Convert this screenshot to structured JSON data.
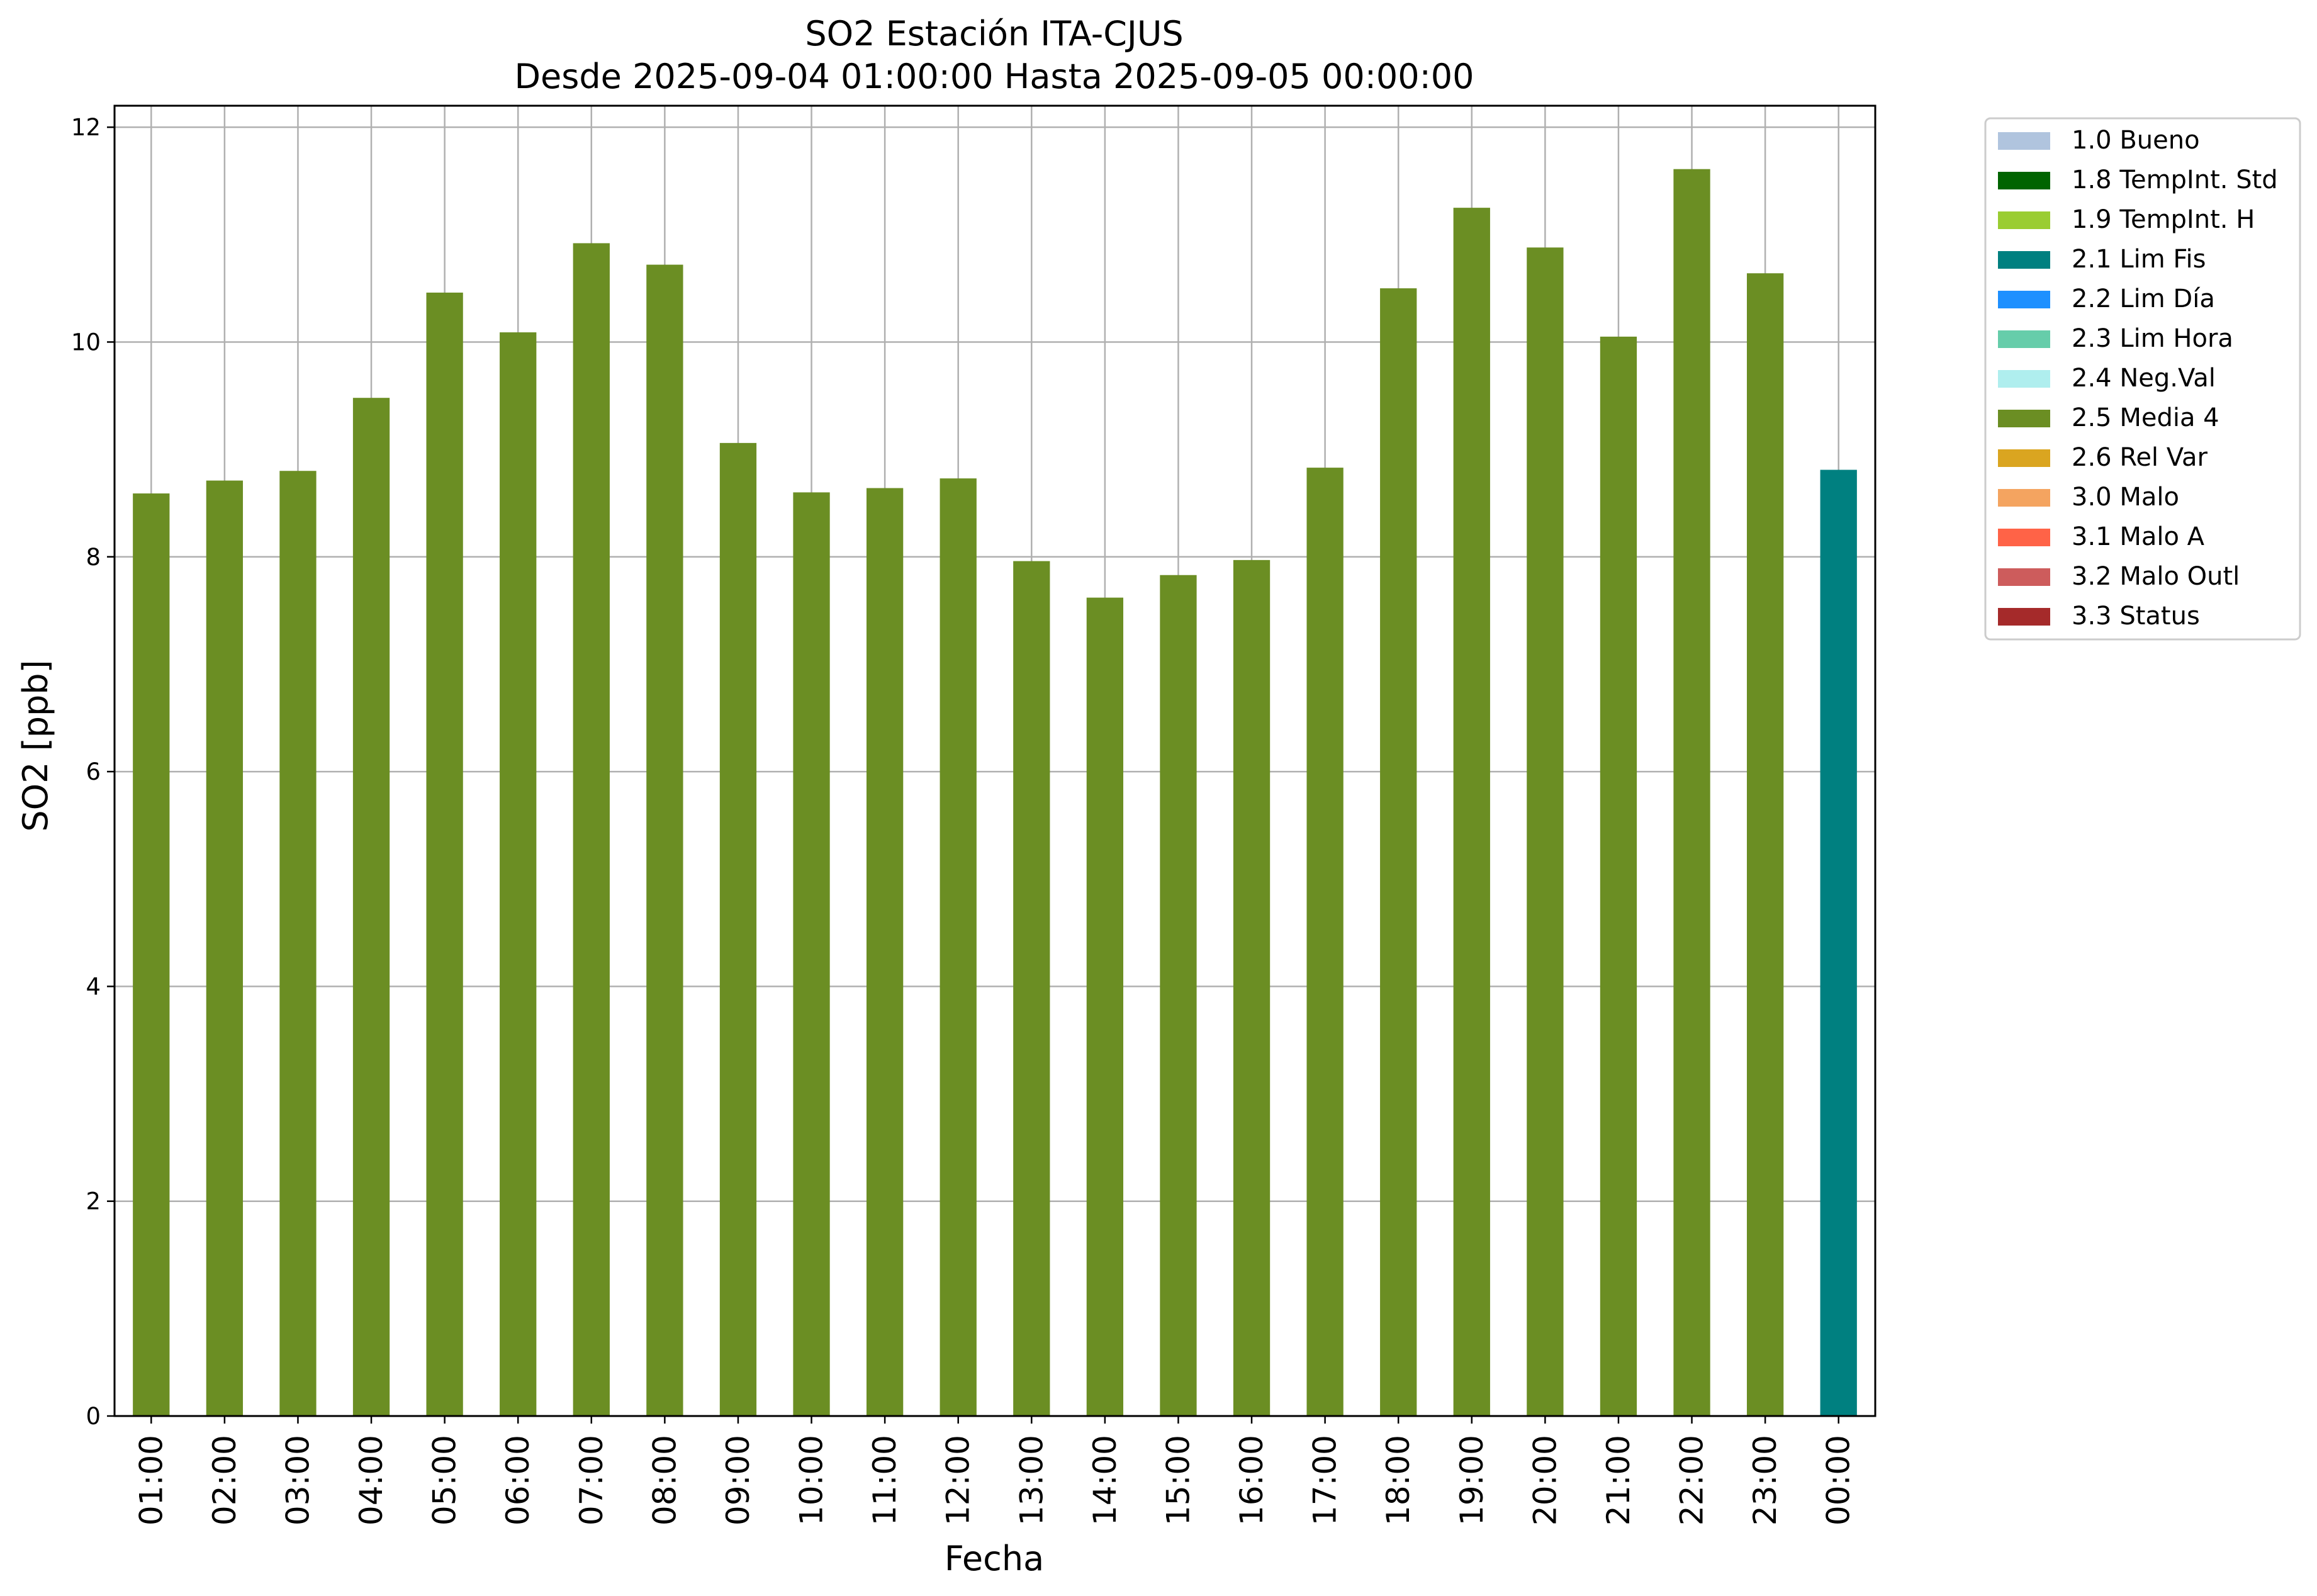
{
  "chart_data": {
    "type": "bar",
    "title": "SO2 Estación ITA-CJUS",
    "subtitle": "Desde 2025-09-04 01:00:00 Hasta 2025-09-05 00:00:00",
    "xlabel": "Fecha",
    "ylabel": "SO2 [ppb]",
    "ylim": [
      0,
      12.2
    ],
    "yticks": [
      "0",
      "2",
      "4",
      "6",
      "8",
      "10",
      "12"
    ],
    "grid": true,
    "legend_position": "outside top-right",
    "categories": [
      "01:00",
      "02:00",
      "03:00",
      "04:00",
      "05:00",
      "06:00",
      "07:00",
      "08:00",
      "09:00",
      "10:00",
      "11:00",
      "12:00",
      "13:00",
      "14:00",
      "15:00",
      "16:00",
      "17:00",
      "18:00",
      "19:00",
      "20:00",
      "21:00",
      "22:00",
      "23:00",
      "00:00"
    ],
    "values": [
      8.59,
      8.71,
      8.8,
      9.48,
      10.46,
      10.09,
      10.92,
      10.72,
      9.06,
      8.6,
      8.64,
      8.73,
      7.96,
      7.62,
      7.83,
      7.97,
      8.83,
      10.5,
      11.25,
      10.88,
      10.05,
      11.61,
      10.64,
      8.81
    ],
    "bar_flags": [
      "2.5 Media 4",
      "2.5 Media 4",
      "2.5 Media 4",
      "2.5 Media 4",
      "2.5 Media 4",
      "2.5 Media 4",
      "2.5 Media 4",
      "2.5 Media 4",
      "2.5 Media 4",
      "2.5 Media 4",
      "2.5 Media 4",
      "2.5 Media 4",
      "2.5 Media 4",
      "2.5 Media 4",
      "2.5 Media 4",
      "2.5 Media 4",
      "2.5 Media 4",
      "2.5 Media 4",
      "2.5 Media 4",
      "2.5 Media 4",
      "2.5 Media 4",
      "2.5 Media 4",
      "2.5 Media 4",
      "2.1 Lim Fis"
    ],
    "legend": [
      {
        "label": "1.0 Bueno",
        "color": "#b0c4de"
      },
      {
        "label": "1.8 TempInt. Std",
        "color": "#006400"
      },
      {
        "label": "1.9 TempInt. H",
        "color": "#9acd32"
      },
      {
        "label": "2.1 Lim Fis",
        "color": "#008080"
      },
      {
        "label": "2.2 Lim Día",
        "color": "#1e90ff"
      },
      {
        "label": "2.3 Lim Hora",
        "color": "#66cdaa"
      },
      {
        "label": "2.4 Neg.Val",
        "color": "#afeeee"
      },
      {
        "label": "2.5 Media 4",
        "color": "#6b8e23"
      },
      {
        "label": "2.6 Rel Var",
        "color": "#daa520"
      },
      {
        "label": "3.0 Malo",
        "color": "#f4a460"
      },
      {
        "label": "3.1 Malo A",
        "color": "#ff6347"
      },
      {
        "label": "3.2 Malo Outl",
        "color": "#cd5c5c"
      },
      {
        "label": "3.3 Status",
        "color": "#a52a2a"
      }
    ]
  }
}
